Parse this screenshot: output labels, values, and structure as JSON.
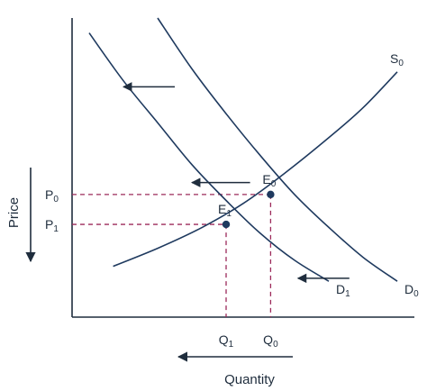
{
  "chart_data": {
    "type": "line",
    "title": "",
    "xlabel": "Quantity",
    "ylabel": "Price",
    "xlim": [
      0,
      10
    ],
    "ylim": [
      0,
      10
    ],
    "grid": false,
    "series": [
      {
        "name": "D0",
        "x": [
          2.5,
          3.5,
          4.5,
          5.5,
          6.5,
          7.5,
          8.5,
          9.5
        ],
        "y": [
          10,
          8.3,
          6.8,
          5.4,
          4.1,
          3.0,
          2.0,
          1.2
        ]
      },
      {
        "name": "D1",
        "x": [
          0.5,
          1.5,
          2.5,
          3.5,
          4.5,
          5.5,
          6.5,
          7.5
        ],
        "y": [
          9.5,
          7.9,
          6.5,
          5.1,
          3.9,
          2.8,
          1.9,
          1.2
        ]
      },
      {
        "name": "S0",
        "x": [
          1.2,
          2.5,
          3.8,
          5.0,
          6.2,
          7.5,
          8.5,
          9.5
        ],
        "y": [
          1.7,
          2.3,
          3.0,
          3.8,
          4.8,
          6.0,
          7.0,
          8.2
        ]
      }
    ],
    "curve_labels": {
      "D0": {
        "main": "D",
        "sub": "0"
      },
      "D1": {
        "main": "D",
        "sub": "1"
      },
      "S0": {
        "main": "S",
        "sub": "0"
      }
    },
    "equilibria": [
      {
        "main": "E",
        "sub": "0",
        "x": 5.8,
        "y": 4.1
      },
      {
        "main": "E",
        "sub": "1",
        "x": 4.5,
        "y": 3.1
      }
    ],
    "y_ticks": [
      {
        "main": "P",
        "sub": "0",
        "value": 4.1
      },
      {
        "main": "P",
        "sub": "1",
        "value": 3.1
      }
    ],
    "x_ticks": [
      {
        "main": "Q",
        "sub": "1",
        "value": 4.5
      },
      {
        "main": "Q",
        "sub": "0",
        "value": 5.8
      }
    ],
    "shift_arrows": [
      {
        "x_from": 3.0,
        "x_to": 1.5,
        "y": 7.7
      },
      {
        "x_from": 5.2,
        "x_to": 3.5,
        "y": 4.5
      },
      {
        "x_from": 8.1,
        "x_to": 6.6,
        "y": 1.3
      }
    ],
    "colors": {
      "curve": "#1f3a5f",
      "dashed_guides": "#9c2a5a",
      "axes": "#1f2d3d"
    }
  }
}
